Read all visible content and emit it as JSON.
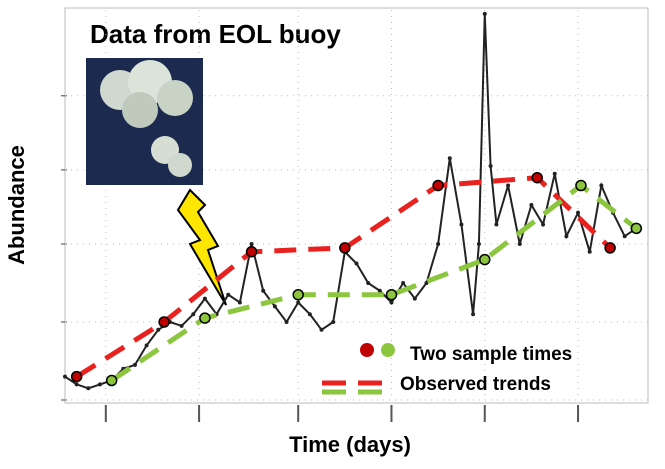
{
  "chart_data": {
    "type": "line",
    "title": "Data from EOL buoy",
    "x_label": "Time (days)",
    "y_label": "Abundance",
    "xlim": [
      0,
      100
    ],
    "ylim": [
      0,
      100
    ],
    "xticks": [
      7,
      23,
      40,
      56,
      72,
      88
    ],
    "yticks": [
      0,
      20,
      40,
      59,
      78
    ],
    "grid": true,
    "series": [
      {
        "color": "#222222",
        "style": "noisy",
        "x": [
          0,
          2,
          4,
          6,
          8,
          10,
          12,
          14,
          16,
          18,
          20,
          22,
          24,
          26,
          28,
          30,
          32,
          34,
          36,
          38,
          40,
          42,
          44,
          46,
          48,
          50,
          52,
          54,
          56,
          58,
          60,
          62,
          64,
          66,
          68,
          70,
          71,
          72,
          73,
          74,
          76,
          78,
          80,
          82,
          84,
          86,
          88,
          90,
          92,
          94,
          96,
          98
        ],
        "values": [
          6,
          4,
          3,
          4,
          5,
          8,
          9,
          14,
          18,
          20,
          19,
          22,
          26,
          22,
          27,
          25,
          40,
          28,
          24,
          20,
          25,
          22,
          18,
          20,
          38,
          35,
          30,
          28,
          25,
          30,
          26,
          30,
          40,
          62,
          45,
          22,
          40,
          99,
          60,
          45,
          55,
          40,
          50,
          45,
          58,
          42,
          48,
          38,
          55,
          48,
          42,
          44
        ]
      },
      {
        "color": "#e8231f",
        "style": "trend",
        "x": [
          2,
          17,
          32,
          48,
          64,
          81,
          93.5
        ],
        "values": [
          6,
          20,
          38,
          39,
          55,
          57,
          39
        ]
      },
      {
        "color": "#8cc63f",
        "style": "trend",
        "x": [
          8,
          24,
          40,
          56,
          72,
          88.5,
          98
        ],
        "values": [
          5,
          21,
          27,
          27,
          36,
          55,
          44
        ]
      }
    ],
    "legend": [
      {
        "label": "Two sample times"
      },
      {
        "label": "Observed trends"
      }
    ]
  }
}
